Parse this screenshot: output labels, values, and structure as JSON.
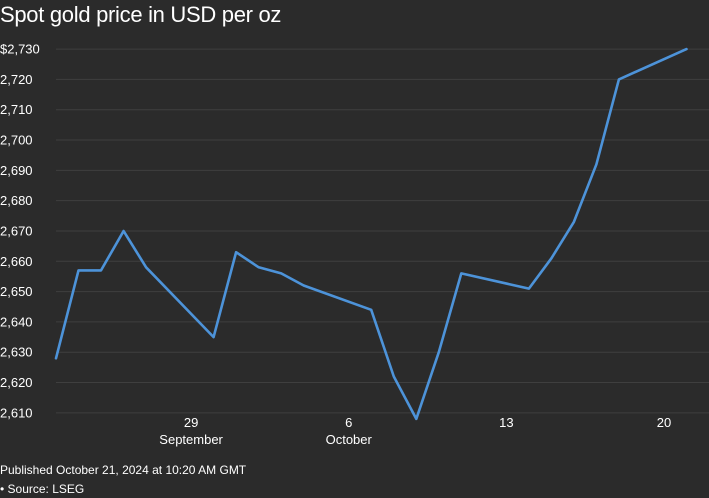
{
  "chart_data": {
    "type": "line",
    "title": "Spot gold price in USD per oz",
    "y_tick_labels": [
      "$2,730",
      "2,720",
      "2,710",
      "2,700",
      "2,690",
      "2,680",
      "2,670",
      "2,660",
      "2,650",
      "2,640",
      "2,630",
      "2,620",
      "2,610"
    ],
    "y_ticks": [
      2730,
      2720,
      2710,
      2700,
      2690,
      2680,
      2670,
      2660,
      2650,
      2640,
      2630,
      2620,
      2610
    ],
    "ylim": [
      2605,
      2733
    ],
    "xlim": [
      "2024-09-23",
      "2024-10-22"
    ],
    "x_ticks": [
      {
        "date": "2024-09-29",
        "day": "29",
        "month": "September"
      },
      {
        "date": "2024-10-06",
        "day": "6",
        "month": "October"
      },
      {
        "date": "2024-10-13",
        "day": "13",
        "month": ""
      },
      {
        "date": "2024-10-20",
        "day": "20",
        "month": ""
      }
    ],
    "grid": "horizontal",
    "color": "#4d93d9",
    "series": [
      {
        "points": [
          {
            "x": "2024-09-23",
            "y": 2628
          },
          {
            "x": "2024-09-24",
            "y": 2657
          },
          {
            "x": "2024-09-25",
            "y": 2657
          },
          {
            "x": "2024-09-26",
            "y": 2670
          },
          {
            "x": "2024-09-27",
            "y": 2658
          },
          {
            "x": "2024-09-30",
            "y": 2635
          },
          {
            "x": "2024-10-01",
            "y": 2663
          },
          {
            "x": "2024-10-02",
            "y": 2658
          },
          {
            "x": "2024-10-03",
            "y": 2656
          },
          {
            "x": "2024-10-04",
            "y": 2652
          },
          {
            "x": "2024-10-07",
            "y": 2644
          },
          {
            "x": "2024-10-08",
            "y": 2622
          },
          {
            "x": "2024-10-09",
            "y": 2608
          },
          {
            "x": "2024-10-10",
            "y": 2630
          },
          {
            "x": "2024-10-11",
            "y": 2656
          },
          {
            "x": "2024-10-14",
            "y": 2651
          },
          {
            "x": "2024-10-15",
            "y": 2661
          },
          {
            "x": "2024-10-16",
            "y": 2673
          },
          {
            "x": "2024-10-17",
            "y": 2692
          },
          {
            "x": "2024-10-18",
            "y": 2720
          },
          {
            "x": "2024-10-21",
            "y": 2730
          }
        ]
      }
    ]
  },
  "footer": {
    "published": "Published October 21, 2024 at 10:20 AM GMT",
    "source": "• Source: LSEG"
  }
}
